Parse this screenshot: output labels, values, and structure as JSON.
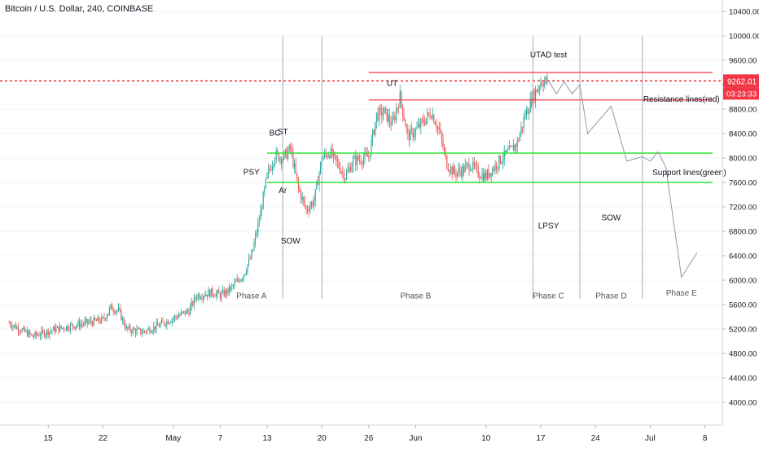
{
  "header": {
    "symbol": "Bitcoin / U.S. Dollar, 240, COINBASE"
  },
  "price_axis": {
    "ticks": [
      "10400.00",
      "10000.00",
      "9600.00",
      "9200.00",
      "8800.00",
      "8400.00",
      "8000.00",
      "7600.00",
      "7200.00",
      "6800.00",
      "6400.00",
      "6000.00",
      "5600.00",
      "5200.00",
      "4800.00",
      "4400.00",
      "4000.00"
    ],
    "last_price": "9262.01",
    "countdown": "03:23:33"
  },
  "time_axis": {
    "ticks": [
      "15",
      "22",
      "May",
      "7",
      "13",
      "20",
      "26",
      "Jun",
      "10",
      "17",
      "24",
      "Jul",
      "8"
    ]
  },
  "annotations": {
    "utad": "UTAD test",
    "ut": "UT",
    "resistance": "Resistance lines(red)",
    "support": "Support lines(green)",
    "bc": "BC",
    "st": "ST",
    "psy": "PSY",
    "ar": "Ar",
    "sow1": "SOW",
    "lpsy": "LPSY",
    "sow2": "SOW",
    "phase_a": "Phase A",
    "phase_b": "Phase B",
    "phase_c": "Phase C",
    "phase_d": "Phase D",
    "phase_e": "Phase E"
  },
  "colors": {
    "up": "#26a69a",
    "down": "#ef5350",
    "resistance": "#f23645",
    "support": "#2ee52e",
    "projection": "#9598a1",
    "phase_divider": "#9598a1",
    "last_price_badge": "#f23645",
    "axis_text": "#131722",
    "grid": "#f0f3fa"
  },
  "chart_data": {
    "type": "candlestick",
    "title": "Bitcoin / U.S. Dollar, 240, COINBASE",
    "price_range": [
      3700,
      10700
    ],
    "last_price": 9262.01,
    "resistance_lines": [
      9400,
      8950
    ],
    "support_lines": [
      8080,
      7600
    ],
    "price_path": [
      {
        "date": "Apr 10",
        "price": 5300
      },
      {
        "date": "Apr 13",
        "price": 5080
      },
      {
        "date": "Apr 16",
        "price": 5200
      },
      {
        "date": "Apr 19",
        "price": 5280
      },
      {
        "date": "Apr 22",
        "price": 5350
      },
      {
        "date": "Apr 23",
        "price": 5550
      },
      {
        "date": "Apr 24",
        "price": 5500
      },
      {
        "date": "Apr 25",
        "price": 5200
      },
      {
        "date": "Apr 27",
        "price": 5150
      },
      {
        "date": "Apr 29",
        "price": 5250
      },
      {
        "date": "May 1",
        "price": 5380
      },
      {
        "date": "May 3",
        "price": 5500
      },
      {
        "date": "May 4",
        "price": 5750
      },
      {
        "date": "May 6",
        "price": 5800
      },
      {
        "date": "May 7",
        "price": 5750
      },
      {
        "date": "May 8",
        "price": 5820
      },
      {
        "date": "May 9",
        "price": 5950
      },
      {
        "date": "May 10",
        "price": 6100
      },
      {
        "date": "May 11",
        "price": 6400
      },
      {
        "date": "May 12",
        "price": 7000
      },
      {
        "date": "May 13",
        "price": 7700
      },
      {
        "date": "May 14",
        "price": 8050
      },
      {
        "date": "May 15",
        "price": 8000
      },
      {
        "date": "May 16",
        "price": 8150
      },
      {
        "date": "May 17",
        "price": 7500
      },
      {
        "date": "May 18",
        "price": 7150
      },
      {
        "date": "May 19",
        "price": 7300
      },
      {
        "date": "May 20",
        "price": 8000
      },
      {
        "date": "May 21",
        "price": 8100
      },
      {
        "date": "May 23",
        "price": 7700
      },
      {
        "date": "May 24",
        "price": 7950
      },
      {
        "date": "May 26",
        "price": 8020
      },
      {
        "date": "May 27",
        "price": 8700
      },
      {
        "date": "May 28",
        "price": 8750
      },
      {
        "date": "May 29",
        "price": 8550
      },
      {
        "date": "May 30",
        "price": 9000
      },
      {
        "date": "May 31",
        "price": 8350
      },
      {
        "date": "Jun 1",
        "price": 8450
      },
      {
        "date": "Jun 2",
        "price": 8600
      },
      {
        "date": "Jun 3",
        "price": 8750
      },
      {
        "date": "Jun 4",
        "price": 8450
      },
      {
        "date": "Jun 5",
        "price": 7900
      },
      {
        "date": "Jun 6",
        "price": 7750
      },
      {
        "date": "Jun 7",
        "price": 7800
      },
      {
        "date": "Jun 8",
        "price": 7900
      },
      {
        "date": "Jun 9",
        "price": 7750
      },
      {
        "date": "Jun 10",
        "price": 7700
      },
      {
        "date": "Jun 11",
        "price": 7850
      },
      {
        "date": "Jun 12",
        "price": 8000
      },
      {
        "date": "Jun 13",
        "price": 8100
      },
      {
        "date": "Jun 14",
        "price": 8250
      },
      {
        "date": "Jun 15",
        "price": 8700
      },
      {
        "date": "Jun 16",
        "price": 9000
      },
      {
        "date": "Jun 17",
        "price": 9250
      },
      {
        "date": "Jun 18",
        "price": 9262
      }
    ],
    "projection_path": [
      {
        "date": "Jun 18",
        "price": 9262
      },
      {
        "date": "Jun 19",
        "price": 9050
      },
      {
        "date": "Jun 20",
        "price": 9250
      },
      {
        "date": "Jun 21",
        "price": 9050
      },
      {
        "date": "Jun 22",
        "price": 9200
      },
      {
        "date": "Jun 23",
        "price": 8400
      },
      {
        "date": "Jun 26",
        "price": 8850
      },
      {
        "date": "Jun 28",
        "price": 7950
      },
      {
        "date": "Jun 30",
        "price": 8020
      },
      {
        "date": "Jul 1",
        "price": 7950
      },
      {
        "date": "Jul 2",
        "price": 8100
      },
      {
        "date": "Jul 3",
        "price": 7850
      },
      {
        "date": "Jul 5",
        "price": 6050
      },
      {
        "date": "Jul 7",
        "price": 6450
      }
    ],
    "phase_dividers": [
      "May 15",
      "May 20",
      "Jun 16",
      "Jun 22",
      "Jun 30"
    ],
    "annotations": [
      {
        "text": "UTAD test",
        "date": "Jun 18",
        "price": 9650
      },
      {
        "text": "UT",
        "date": "May 29",
        "price": 9180
      },
      {
        "text": "Resistance lines(red)",
        "date": "Jul 5",
        "price": 8920
      },
      {
        "text": "Support lines(green)",
        "date": "Jul 6",
        "price": 7720
      },
      {
        "text": "BC",
        "date": "May 14",
        "price": 8370
      },
      {
        "text": "ST",
        "date": "May 15",
        "price": 8390
      },
      {
        "text": "PSY",
        "date": "May 11",
        "price": 7730
      },
      {
        "text": "Ar",
        "date": "May 15",
        "price": 7430
      },
      {
        "text": "SOW",
        "date": "May 16",
        "price": 6600
      },
      {
        "text": "LPSY",
        "date": "Jun 18",
        "price": 6850
      },
      {
        "text": "SOW",
        "date": "Jun 26",
        "price": 6980
      },
      {
        "text": "Phase A",
        "date": "May 11",
        "price": 5700
      },
      {
        "text": "Phase B",
        "date": "Jun 1",
        "price": 5700
      },
      {
        "text": "Phase C",
        "date": "Jun 18",
        "price": 5700
      },
      {
        "text": "Phase D",
        "date": "Jun 26",
        "price": 5700
      },
      {
        "text": "Phase E",
        "date": "Jul 5",
        "price": 5750
      }
    ]
  }
}
